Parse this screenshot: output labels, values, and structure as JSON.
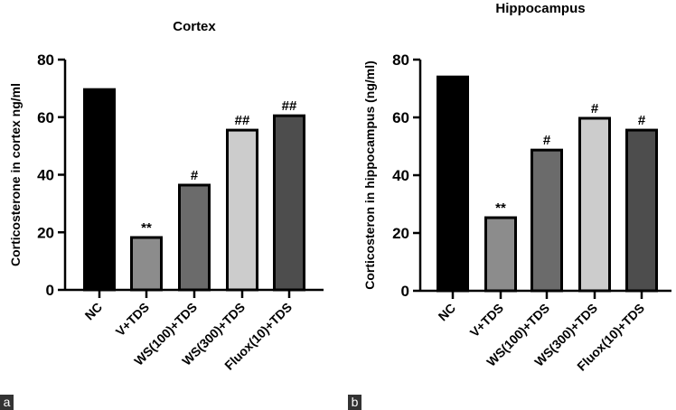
{
  "chart_data": [
    {
      "type": "bar",
      "panel": "a",
      "title": "Cortex",
      "xlabel": "",
      "ylabel": "Corticosterone in cortex ng/ml",
      "ylim": [
        0,
        80
      ],
      "yticks": [
        0,
        20,
        40,
        60,
        80
      ],
      "categories": [
        "NC",
        "V+TDS",
        "WS(100)+TDS",
        "WS(300)+TDS",
        "Fluox(10)+TDS"
      ],
      "values": [
        69.6,
        18.2,
        36.4,
        55.5,
        60.5
      ],
      "annotations": [
        "",
        "**",
        "#",
        "##",
        "##"
      ],
      "colors": [
        "#000000",
        "#8c8c8c",
        "#6b6b6b",
        "#cccccc",
        "#4d4d4d"
      ],
      "grid": false
    },
    {
      "type": "bar",
      "panel": "b",
      "title": "Hippocampus",
      "xlabel": "",
      "ylabel": "Corticosteron in hippocampus (ng/ml)",
      "ylim": [
        0,
        80
      ],
      "yticks": [
        0,
        20,
        40,
        60,
        80
      ],
      "categories": [
        "NC",
        "V+TDS",
        "WS(100)+TDS",
        "WS(300)+TDS",
        "Fluox(10)+TDS"
      ],
      "values": [
        74.0,
        25.3,
        48.7,
        59.7,
        55.6
      ],
      "annotations": [
        "",
        "**",
        "#",
        "#",
        "#"
      ],
      "colors": [
        "#000000",
        "#8c8c8c",
        "#6b6b6b",
        "#cccccc",
        "#4d4d4d"
      ],
      "grid": false
    }
  ]
}
